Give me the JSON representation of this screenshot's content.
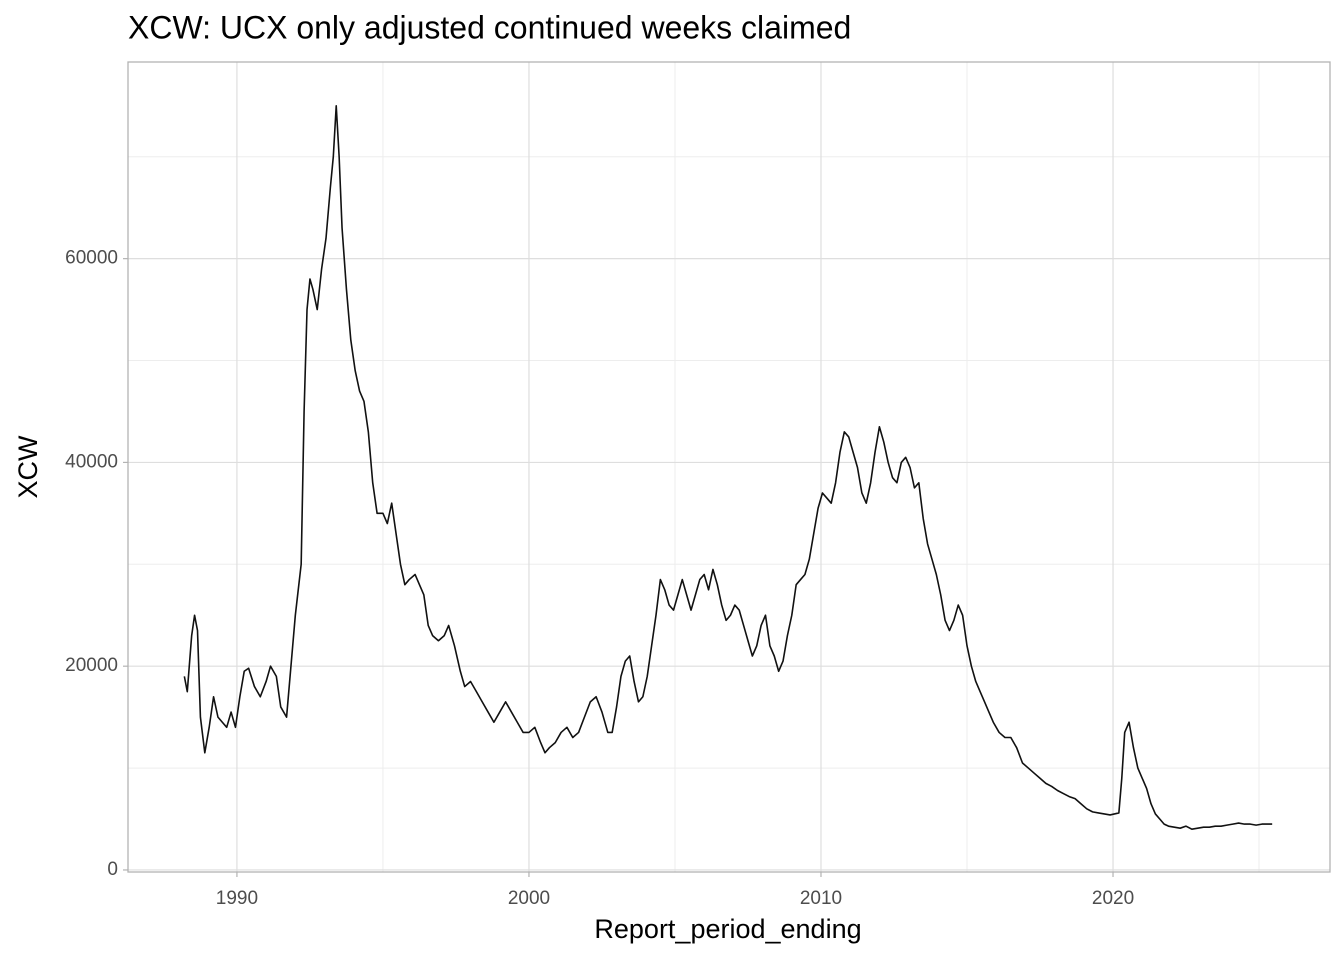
{
  "chart_data": {
    "type": "line",
    "title": "XCW: UCX only adjusted continued weeks claimed",
    "x_label": "Report_period_ending",
    "y_label": "XCW",
    "xlim": [
      1986.27,
      2027.43
    ],
    "ylim": [
      -200,
      79300
    ],
    "xticks": [
      1990,
      2000,
      2010,
      2020
    ],
    "yticks": [
      0,
      20000,
      40000,
      60000
    ],
    "minor_xticks": [
      1995,
      2005,
      2015,
      2025
    ],
    "minor_yticks": [
      10000,
      30000,
      50000,
      70000
    ],
    "grid": true,
    "series": [
      {
        "name": "XCW",
        "color": "#111111",
        "x": [
          1988.2,
          1988.3,
          1988.45,
          1988.55,
          1988.65,
          1988.75,
          1988.9,
          1989.05,
          1989.2,
          1989.35,
          1989.5,
          1989.65,
          1989.8,
          1989.95,
          1990.1,
          1990.25,
          1990.4,
          1990.6,
          1990.8,
          1991.0,
          1991.15,
          1991.35,
          1991.5,
          1991.7,
          1991.85,
          1992.0,
          1992.1,
          1992.2,
          1992.3,
          1992.4,
          1992.5,
          1992.6,
          1992.75,
          1992.9,
          1993.05,
          1993.2,
          1993.3,
          1993.4,
          1993.5,
          1993.6,
          1993.75,
          1993.9,
          1994.05,
          1994.2,
          1994.35,
          1994.5,
          1994.65,
          1994.8,
          1995.0,
          1995.15,
          1995.3,
          1995.45,
          1995.6,
          1995.75,
          1995.9,
          1996.1,
          1996.25,
          1996.4,
          1996.55,
          1996.7,
          1996.9,
          1997.1,
          1997.25,
          1997.45,
          1997.65,
          1997.8,
          1998.0,
          1998.2,
          1998.4,
          1998.6,
          1998.8,
          1999.0,
          1999.2,
          1999.4,
          1999.6,
          1999.8,
          2000.0,
          2000.2,
          2000.4,
          2000.55,
          2000.7,
          2000.9,
          2001.1,
          2001.3,
          2001.5,
          2001.7,
          2001.9,
          2002.1,
          2002.3,
          2002.5,
          2002.7,
          2002.85,
          2003.0,
          2003.15,
          2003.3,
          2003.45,
          2003.6,
          2003.75,
          2003.9,
          2004.05,
          2004.2,
          2004.35,
          2004.5,
          2004.65,
          2004.8,
          2004.95,
          2005.1,
          2005.25,
          2005.4,
          2005.55,
          2005.7,
          2005.85,
          2006.0,
          2006.15,
          2006.3,
          2006.45,
          2006.6,
          2006.75,
          2006.9,
          2007.05,
          2007.2,
          2007.35,
          2007.5,
          2007.65,
          2007.8,
          2007.95,
          2008.1,
          2008.25,
          2008.4,
          2008.55,
          2008.7,
          2008.85,
          2009.0,
          2009.15,
          2009.3,
          2009.45,
          2009.6,
          2009.75,
          2009.9,
          2010.05,
          2010.2,
          2010.35,
          2010.5,
          2010.65,
          2010.8,
          2010.95,
          2011.1,
          2011.25,
          2011.4,
          2011.55,
          2011.7,
          2011.85,
          2012.0,
          2012.15,
          2012.3,
          2012.45,
          2012.6,
          2012.75,
          2012.9,
          2013.05,
          2013.2,
          2013.35,
          2013.5,
          2013.65,
          2013.8,
          2013.95,
          2014.1,
          2014.25,
          2014.4,
          2014.55,
          2014.7,
          2014.85,
          2015.0,
          2015.15,
          2015.3,
          2015.45,
          2015.6,
          2015.75,
          2015.9,
          2016.1,
          2016.3,
          2016.5,
          2016.7,
          2016.9,
          2017.1,
          2017.3,
          2017.5,
          2017.7,
          2017.9,
          2018.1,
          2018.3,
          2018.5,
          2018.7,
          2018.9,
          2019.1,
          2019.3,
          2019.5,
          2019.7,
          2019.9,
          2020.05,
          2020.2,
          2020.3,
          2020.4,
          2020.55,
          2020.7,
          2020.85,
          2021.0,
          2021.15,
          2021.3,
          2021.45,
          2021.6,
          2021.75,
          2021.9,
          2022.1,
          2022.3,
          2022.5,
          2022.7,
          2022.9,
          2023.1,
          2023.3,
          2023.5,
          2023.7,
          2023.9,
          2024.1,
          2024.3,
          2024.5,
          2024.7,
          2024.9,
          2025.1,
          2025.3,
          2025.45
        ],
        "values": [
          19000,
          17500,
          23000,
          25000,
          23500,
          15000,
          11500,
          14000,
          17000,
          15000,
          14500,
          14000,
          15500,
          14000,
          17000,
          19500,
          19800,
          18000,
          17000,
          18500,
          20000,
          19000,
          16000,
          15000,
          20000,
          25000,
          27500,
          30000,
          45000,
          55000,
          58000,
          57000,
          55000,
          59000,
          62000,
          67000,
          70000,
          75000,
          70000,
          63000,
          57000,
          52000,
          49000,
          47000,
          46000,
          43000,
          38000,
          35000,
          35000,
          34000,
          36000,
          33000,
          30000,
          28000,
          28500,
          29000,
          28000,
          27000,
          24000,
          23000,
          22500,
          23000,
          24000,
          22000,
          19500,
          18000,
          18500,
          17500,
          16500,
          15500,
          14500,
          15500,
          16500,
          15500,
          14500,
          13500,
          13500,
          14000,
          12500,
          11500,
          12000,
          12500,
          13500,
          14000,
          13000,
          13500,
          15000,
          16500,
          17000,
          15500,
          13500,
          13500,
          16000,
          19000,
          20500,
          21000,
          18500,
          16500,
          17000,
          19000,
          22000,
          25000,
          28500,
          27500,
          26000,
          25500,
          27000,
          28500,
          27000,
          25500,
          27000,
          28500,
          29000,
          27500,
          29500,
          28000,
          26000,
          24500,
          25000,
          26000,
          25500,
          24000,
          22500,
          21000,
          22000,
          24000,
          25000,
          22000,
          21000,
          19500,
          20500,
          23000,
          25000,
          28000,
          28500,
          29000,
          30500,
          33000,
          35500,
          37000,
          36500,
          36000,
          38000,
          41000,
          43000,
          42500,
          41000,
          39500,
          37000,
          36000,
          38000,
          41000,
          43500,
          42000,
          40000,
          38500,
          38000,
          40000,
          40500,
          39500,
          37500,
          38000,
          34500,
          32000,
          30500,
          29000,
          27000,
          24500,
          23500,
          24500,
          26000,
          25000,
          22000,
          20000,
          18500,
          17500,
          16500,
          15500,
          14500,
          13500,
          13000,
          13000,
          12000,
          10500,
          10000,
          9500,
          9000,
          8500,
          8200,
          7800,
          7500,
          7200,
          7000,
          6500,
          6000,
          5700,
          5600,
          5500,
          5400,
          5500,
          5600,
          9000,
          13500,
          14500,
          12000,
          10000,
          9000,
          8000,
          6500,
          5500,
          5000,
          4500,
          4300,
          4200,
          4100,
          4300,
          4000,
          4100,
          4200,
          4200,
          4300,
          4300,
          4400,
          4500,
          4600,
          4500,
          4500,
          4400,
          4500,
          4500,
          4500
        ]
      }
    ]
  }
}
